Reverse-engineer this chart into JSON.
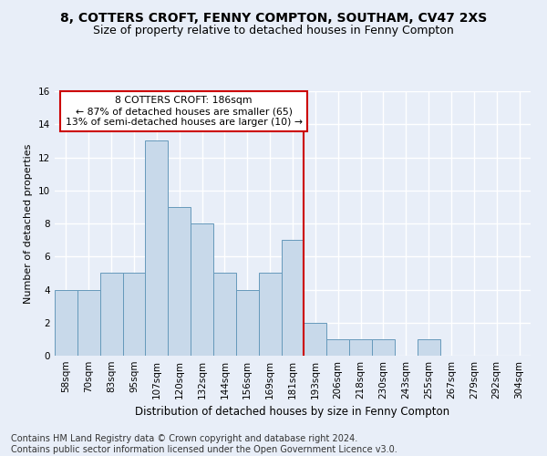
{
  "title": "8, COTTERS CROFT, FENNY COMPTON, SOUTHAM, CV47 2XS",
  "subtitle": "Size of property relative to detached houses in Fenny Compton",
  "xlabel": "Distribution of detached houses by size in Fenny Compton",
  "ylabel": "Number of detached properties",
  "categories": [
    "58sqm",
    "70sqm",
    "83sqm",
    "95sqm",
    "107sqm",
    "120sqm",
    "132sqm",
    "144sqm",
    "156sqm",
    "169sqm",
    "181sqm",
    "193sqm",
    "206sqm",
    "218sqm",
    "230sqm",
    "243sqm",
    "255sqm",
    "267sqm",
    "279sqm",
    "292sqm",
    "304sqm"
  ],
  "values": [
    4,
    4,
    5,
    5,
    13,
    9,
    8,
    5,
    4,
    5,
    7,
    2,
    1,
    1,
    1,
    0,
    1,
    0,
    0,
    0,
    0
  ],
  "bar_color": "#c8d9ea",
  "bar_edge_color": "#6699bb",
  "vline_color": "#cc0000",
  "annotation_text": "8 COTTERS CROFT: 186sqm\n← 87% of detached houses are smaller (65)\n13% of semi-detached houses are larger (10) →",
  "annotation_box_color": "#ffffff",
  "annotation_box_edge": "#cc0000",
  "ylim": [
    0,
    16
  ],
  "yticks": [
    0,
    2,
    4,
    6,
    8,
    10,
    12,
    14,
    16
  ],
  "background_color": "#e8eef8",
  "grid_color": "#ffffff",
  "footer": "Contains HM Land Registry data © Crown copyright and database right 2024.\nContains public sector information licensed under the Open Government Licence v3.0.",
  "title_fontsize": 10,
  "subtitle_fontsize": 9,
  "xlabel_fontsize": 8.5,
  "ylabel_fontsize": 8,
  "footer_fontsize": 7,
  "tick_fontsize": 7.5
}
